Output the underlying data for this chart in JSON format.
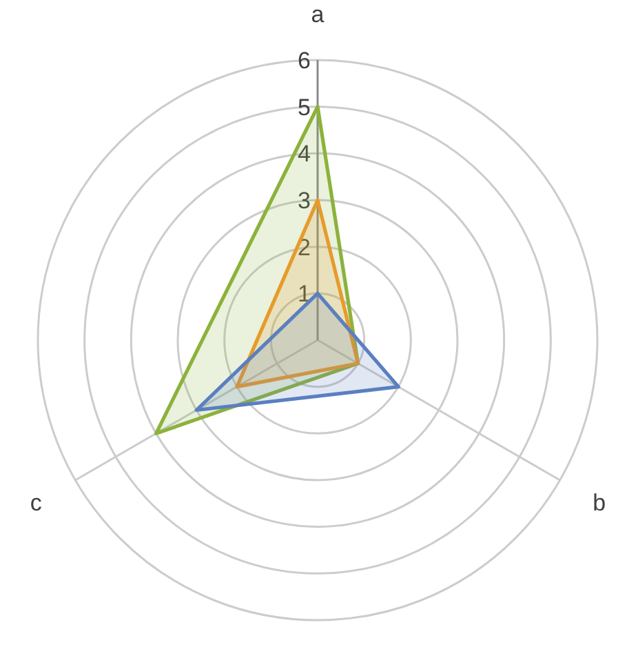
{
  "chart_data": {
    "type": "radar",
    "categories": [
      "a",
      "b",
      "c"
    ],
    "series": [
      {
        "color": "#8cb23b",
        "values": [
          5,
          1,
          4
        ]
      },
      {
        "color": "#e69b2b",
        "values": [
          3,
          1,
          2
        ]
      },
      {
        "color": "#5b7fc0",
        "values": [
          1,
          2,
          3
        ]
      }
    ],
    "ylim": [
      0,
      6
    ],
    "yticks": [
      1,
      2,
      3,
      4,
      5,
      6
    ],
    "grid": true
  }
}
